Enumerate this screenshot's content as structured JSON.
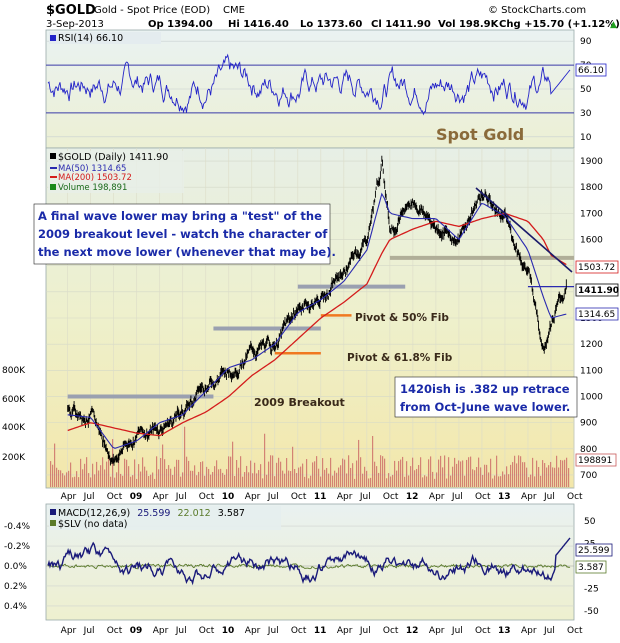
{
  "header": {
    "symbol": "$GOLD",
    "name": "Gold - Spot Price (EOD)",
    "exchange": "CME",
    "date": "3-Sep-2013",
    "open": "Op 1394.00",
    "high": "Hi 1416.40",
    "low": "Lo 1373.60",
    "close": "Cl 1411.90",
    "volume": "Vol 198.9K",
    "change": "Chg +15.70 (+1.12%)",
    "up_arrow": "▲",
    "watermark": "© StockCharts.com"
  },
  "rsi_panel": {
    "label": "RSI(14) 66.10",
    "ticks": [
      "90",
      "70",
      "50",
      "30",
      "10"
    ],
    "tick_values": [
      90,
      70,
      50,
      30,
      10
    ],
    "current_badge": "66.10",
    "current_value": 66.1,
    "overbought": 70,
    "oversold": 30
  },
  "price_panel": {
    "legend": {
      "main": "$GOLD (Daily) 1411.90",
      "ma50": "MA(50) 1314.65",
      "ma200": "MA(200) 1503.72",
      "volume": "Volume 198,891"
    },
    "title_overlay": "Spot Gold",
    "annotation_top": [
      "A final wave lower may bring a \"test\" of the",
      "2009 breakout level - watch the character of",
      "the next move lower (whenever that may be)."
    ],
    "annotation_bottom": [
      "1420ish is .382 up retrace",
      "from Oct-June wave lower."
    ],
    "pivot_50": "Pivot & 50% Fib",
    "pivot_618": "Pivot & 61.8% Fib",
    "breakout_label": "2009 Breakout",
    "price_ticks": [
      "1900",
      "1800",
      "1700",
      "1600",
      "1500",
      "1400",
      "1300",
      "1200",
      "1100",
      "1000",
      "900",
      "800",
      "700"
    ],
    "price_tick_values": [
      1900,
      1800,
      1700,
      1600,
      1500,
      1400,
      1300,
      1200,
      1100,
      1000,
      900,
      800,
      700
    ],
    "badges": {
      "ma200": "1503.72",
      "close": "1411.90",
      "ma50": "1314.65",
      "volume": "198891"
    },
    "volume_ticks": [
      "800K",
      "600K",
      "400K",
      "200K"
    ]
  },
  "macd_panel": {
    "label": "MACD(12,26,9) 25.599, 22.012, 3.587",
    "label_prefix": "MACD(12,26,9)",
    "macd_value": "25.599",
    "signal_value": "22.012",
    "hist_value": "3.587",
    "slv_label": "$SLV (no data)",
    "left_ticks": [
      "0.4%",
      "0.2%",
      "0.0%",
      "-0.2%",
      "-0.4%"
    ],
    "right_ticks": [
      "50",
      "25",
      "0",
      "-25",
      "-50"
    ],
    "badge_macd": "25.599",
    "badge_hist": "3.587"
  },
  "x_axis": {
    "labels": [
      "Apr",
      "Jul",
      "Oct",
      "09",
      "Apr",
      "Jul",
      "Oct",
      "10",
      "Apr",
      "Jul",
      "Oct",
      "11",
      "Apr",
      "Jul",
      "Oct",
      "12",
      "Apr",
      "Jul",
      "Oct",
      "13",
      "Apr",
      "Jul",
      "Oct"
    ]
  },
  "colors": {
    "rsi_line": "#2323c8",
    "price_bars": "#000000",
    "ma50": "#2a2ab0",
    "ma200": "#d41c1c",
    "volume": "#c85a5a",
    "macd_line": "#1a1a7a",
    "signal_line": "#5a7a2a",
    "panel_bg_top": "#e6f0f5",
    "panel_bg_bottom": "#f0ebc0",
    "annotation_text": "#1a2aa8",
    "fib_lines": "#f07820",
    "pivot_lines": "#9aa0b0"
  },
  "chart_data": {
    "type": "line",
    "title": "$GOLD Gold - Spot Price (EOD) CME",
    "series": [
      {
        "name": "$GOLD (Daily)",
        "x": [
          "2008-04",
          "2008-07",
          "2008-10",
          "2009-01",
          "2009-04",
          "2009-07",
          "2009-10",
          "2010-01",
          "2010-04",
          "2010-07",
          "2010-10",
          "2011-01",
          "2011-04",
          "2011-07",
          "2011-09",
          "2011-10",
          "2012-01",
          "2012-04",
          "2012-07",
          "2012-10",
          "2013-01",
          "2013-04",
          "2013-06",
          "2013-07",
          "2013-09"
        ],
        "values": [
          940,
          930,
          760,
          860,
          880,
          940,
          1050,
          1100,
          1170,
          1200,
          1340,
          1370,
          1480,
          1600,
          1900,
          1650,
          1750,
          1650,
          1600,
          1780,
          1680,
          1480,
          1200,
          1300,
          1412
        ]
      },
      {
        "name": "MA(50)",
        "values": [
          930,
          920,
          800,
          830,
          900,
          930,
          1020,
          1110,
          1140,
          1200,
          1320,
          1370,
          1440,
          1560,
          1780,
          1700,
          1680,
          1680,
          1600,
          1740,
          1690,
          1560,
          1380,
          1300,
          1315
        ]
      },
      {
        "name": "MA(200)",
        "values": [
          870,
          900,
          880,
          860,
          850,
          900,
          940,
          1000,
          1080,
          1140,
          1220,
          1300,
          1360,
          1430,
          1550,
          1600,
          1640,
          1670,
          1650,
          1680,
          1700,
          1670,
          1600,
          1540,
          1504
        ]
      }
    ],
    "ylim": [
      650,
      1950
    ],
    "close": 1411.9,
    "ma50_last": 1314.65,
    "ma200_last": 1503.72,
    "volume_last": 198891,
    "rsi_last": 66.1,
    "macd": {
      "macd": 25.599,
      "signal": 22.012,
      "histogram": 3.587
    },
    "horizontal_levels": [
      {
        "label": "2009 Breakout",
        "value": 1000
      },
      {
        "label": "Pivot & 61.8% Fib",
        "value": 1165
      },
      {
        "label": "Pivot & 50% Fib",
        "value": 1310
      },
      {
        "value": 1260
      },
      {
        "value": 1420
      },
      {
        "value": 1530
      }
    ]
  }
}
